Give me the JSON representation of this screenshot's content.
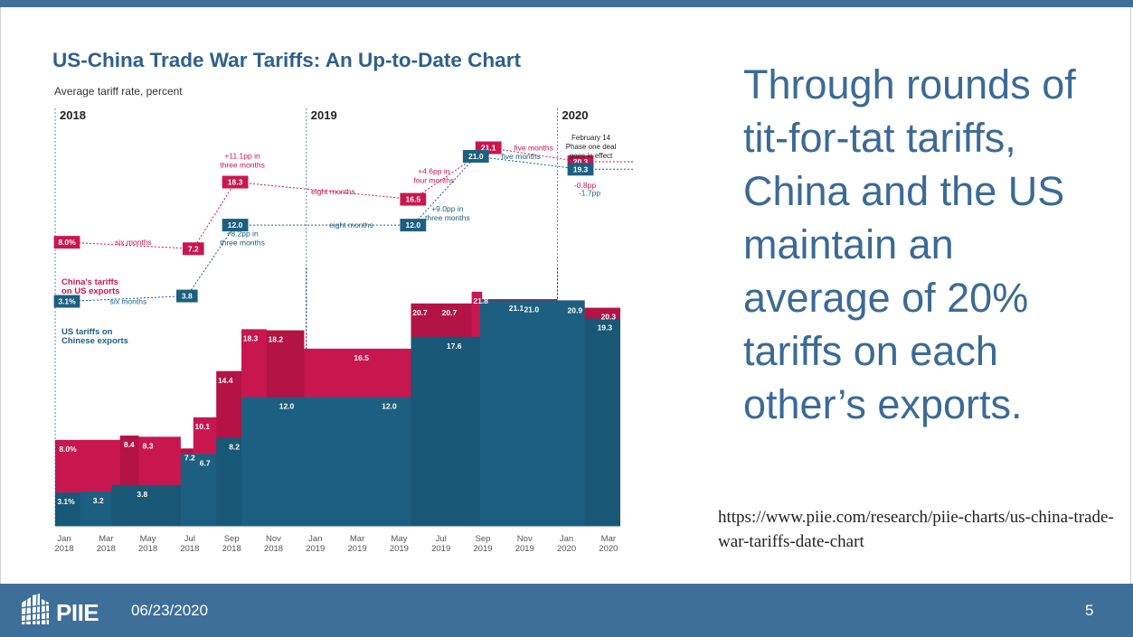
{
  "slide": {
    "text": "Through rounds of tit-for-tat tariffs, China and the US maintain an average of 20% tariffs on each other’s exports.",
    "source_url": "https://www.piie.com/research/piie-charts/us-china-trade-war-tariffs-date-chart"
  },
  "footer": {
    "logo_text": "PIIE",
    "date": "06/23/2020",
    "page_number": "5"
  },
  "colors": {
    "china": "#c8174f",
    "china_dark": "#a3103e",
    "us": "#1d5f80",
    "us_dark": "#16506d",
    "title": "#2f5f8c",
    "footer_bg": "#3e6f99",
    "slide_text": "#3b6a95"
  },
  "chart_data": {
    "type": "area",
    "title": "US-China Trade War Tariffs: An Up-to-Date Chart",
    "subtitle": "Average tariff rate, percent",
    "year_markers": [
      {
        "label": "2018",
        "x": 0
      },
      {
        "label": "2019",
        "x": 12
      },
      {
        "label": "2020",
        "x": 24
      }
    ],
    "x_ticks": [
      {
        "x": 0,
        "label": "Jan",
        "year": "2018"
      },
      {
        "x": 2,
        "label": "Mar",
        "year": "2018"
      },
      {
        "x": 4,
        "label": "May",
        "year": "2018"
      },
      {
        "x": 6,
        "label": "Jul",
        "year": "2018"
      },
      {
        "x": 8,
        "label": "Sep",
        "year": "2018"
      },
      {
        "x": 10,
        "label": "Nov",
        "year": "2018"
      },
      {
        "x": 12,
        "label": "Jan",
        "year": "2019"
      },
      {
        "x": 14,
        "label": "Mar",
        "year": "2019"
      },
      {
        "x": 16,
        "label": "May",
        "year": "2019"
      },
      {
        "x": 18,
        "label": "Jul",
        "year": "2019"
      },
      {
        "x": 20,
        "label": "Sep",
        "year": "2019"
      },
      {
        "x": 22,
        "label": "Nov",
        "year": "2019"
      },
      {
        "x": 24,
        "label": "Jan",
        "year": "2020"
      },
      {
        "x": 26,
        "label": "Mar",
        "year": "2020"
      }
    ],
    "x_range": [
      0,
      27
    ],
    "y_range": [
      0,
      36
    ],
    "series": [
      {
        "name": "China's tariffs on US exports",
        "steps": [
          {
            "x": 0,
            "y": 8.0
          },
          {
            "x": 3.1,
            "y": 8.4
          },
          {
            "x": 4,
            "y": 8.3
          },
          {
            "x": 6,
            "y": 7.2
          },
          {
            "x": 6.6,
            "y": 10.1
          },
          {
            "x": 7.7,
            "y": 14.4
          },
          {
            "x": 8.9,
            "y": 18.3
          },
          {
            "x": 10.1,
            "y": 18.2
          },
          {
            "x": 11.9,
            "y": 16.5
          },
          {
            "x": 17,
            "y": 20.7
          },
          {
            "x": 19.9,
            "y": 21.8
          },
          {
            "x": 20.4,
            "y": 21.1
          },
          {
            "x": 24,
            "y": 20.9
          },
          {
            "x": 25.3,
            "y": 20.3
          }
        ],
        "labels": [
          {
            "x": 0,
            "y": 8.0,
            "text": "8.0%"
          },
          {
            "x": 3.1,
            "y": 8.4,
            "text": "8.4"
          },
          {
            "x": 4,
            "y": 8.3,
            "text": "8.3"
          },
          {
            "x": 6,
            "y": 7.2,
            "text": "7.2"
          },
          {
            "x": 6.6,
            "y": 10.1,
            "text": "10.1"
          },
          {
            "x": 7.7,
            "y": 14.4,
            "text": "14.4"
          },
          {
            "x": 8.9,
            "y": 18.3,
            "text": "18.3"
          },
          {
            "x": 10.1,
            "y": 18.2,
            "text": "18.2"
          },
          {
            "x": 14.2,
            "y": 16.5,
            "text": "16.5"
          },
          {
            "x": 17,
            "y": 20.7,
            "text": "20.7"
          },
          {
            "x": 18.4,
            "y": 20.7,
            "text": "20.7"
          },
          {
            "x": 19.9,
            "y": 21.8,
            "text": "21.8"
          },
          {
            "x": 21.6,
            "y": 21.1,
            "text": "21.1"
          },
          {
            "x": 24.4,
            "y": 20.9,
            "text": "20.9"
          },
          {
            "x": 26,
            "y": 20.3,
            "text": "20.3"
          }
        ]
      },
      {
        "name": "US tariffs on Chinese exports",
        "steps": [
          {
            "x": 0,
            "y": 3.1
          },
          {
            "x": 1.2,
            "y": 3.2
          },
          {
            "x": 2.7,
            "y": 3.8
          },
          {
            "x": 6,
            "y": 6.7
          },
          {
            "x": 7.7,
            "y": 8.2
          },
          {
            "x": 8.9,
            "y": 12.0
          },
          {
            "x": 17,
            "y": 17.6
          },
          {
            "x": 20.3,
            "y": 21.0
          },
          {
            "x": 25.3,
            "y": 19.3
          }
        ],
        "labels": [
          {
            "x": 0,
            "y": 3.1,
            "text": "3.1%"
          },
          {
            "x": 1.8,
            "y": 3.2,
            "text": "3.2"
          },
          {
            "x": 3.9,
            "y": 3.8,
            "text": "3.8"
          },
          {
            "x": 6.9,
            "y": 6.7,
            "text": "6.7"
          },
          {
            "x": 8.3,
            "y": 8.2,
            "text": "8.2"
          },
          {
            "x": 10.8,
            "y": 12.0,
            "text": "12.0"
          },
          {
            "x": 15.7,
            "y": 12.0,
            "text": "12.0"
          },
          {
            "x": 18.8,
            "y": 17.6,
            "text": "17.6"
          },
          {
            "x": 22.5,
            "y": 21.0,
            "text": "21.0"
          },
          {
            "x": 26,
            "y": 19.3,
            "text": "19.3"
          }
        ]
      }
    ],
    "annotation_data": {
      "china_points": [
        {
          "x": 6.6,
          "y": 25.8,
          "text": "7.2"
        },
        {
          "x": 8.6,
          "y": 32.0,
          "text": "18.3"
        },
        {
          "x": 17.1,
          "y": 30.4,
          "text": "16.5"
        },
        {
          "x": 20.7,
          "y": 35.2,
          "text": "21.1"
        },
        {
          "x": 25.1,
          "y": 33.9,
          "text": "20.3"
        }
      ],
      "china_start": {
        "x": 0,
        "y": 26.4,
        "text": "8.0%"
      },
      "us_points": [
        {
          "x": 6.3,
          "y": 21.4,
          "text": "3.8"
        },
        {
          "x": 8.6,
          "y": 28.0,
          "text": "12.0"
        },
        {
          "x": 17.1,
          "y": 28.0,
          "text": "12.0"
        },
        {
          "x": 20.1,
          "y": 34.4,
          "text": "21.0"
        },
        {
          "x": 25.1,
          "y": 33.2,
          "text": "19.3"
        }
      ],
      "us_start": {
        "x": 0,
        "y": 20.9,
        "text": "3.1%"
      }
    },
    "series_labels": {
      "china": [
        "China's tariffs",
        "on US exports"
      ],
      "us": [
        "US tariffs on",
        "Chinese exports"
      ]
    },
    "annotations": {
      "six_months_china": "six months",
      "six_months_us": "six months",
      "eight_months_china": "eight months",
      "eight_months_us": "eight months",
      "five_months_china": "five months",
      "five_months_us": "five months",
      "jump_china_2018": [
        "+11.1pp in",
        "three months"
      ],
      "jump_us_2018": [
        "+8.2pp in",
        "three months"
      ],
      "jump_china_2019": [
        "+4.6pp in",
        "four months"
      ],
      "jump_us_2019": [
        "+9.0pp in",
        "three months"
      ],
      "drop_china": "-0.8pp",
      "drop_us": "-1.7pp",
      "phase_one": [
        "February 14",
        "Phase one deal",
        "goes in effect"
      ]
    }
  }
}
